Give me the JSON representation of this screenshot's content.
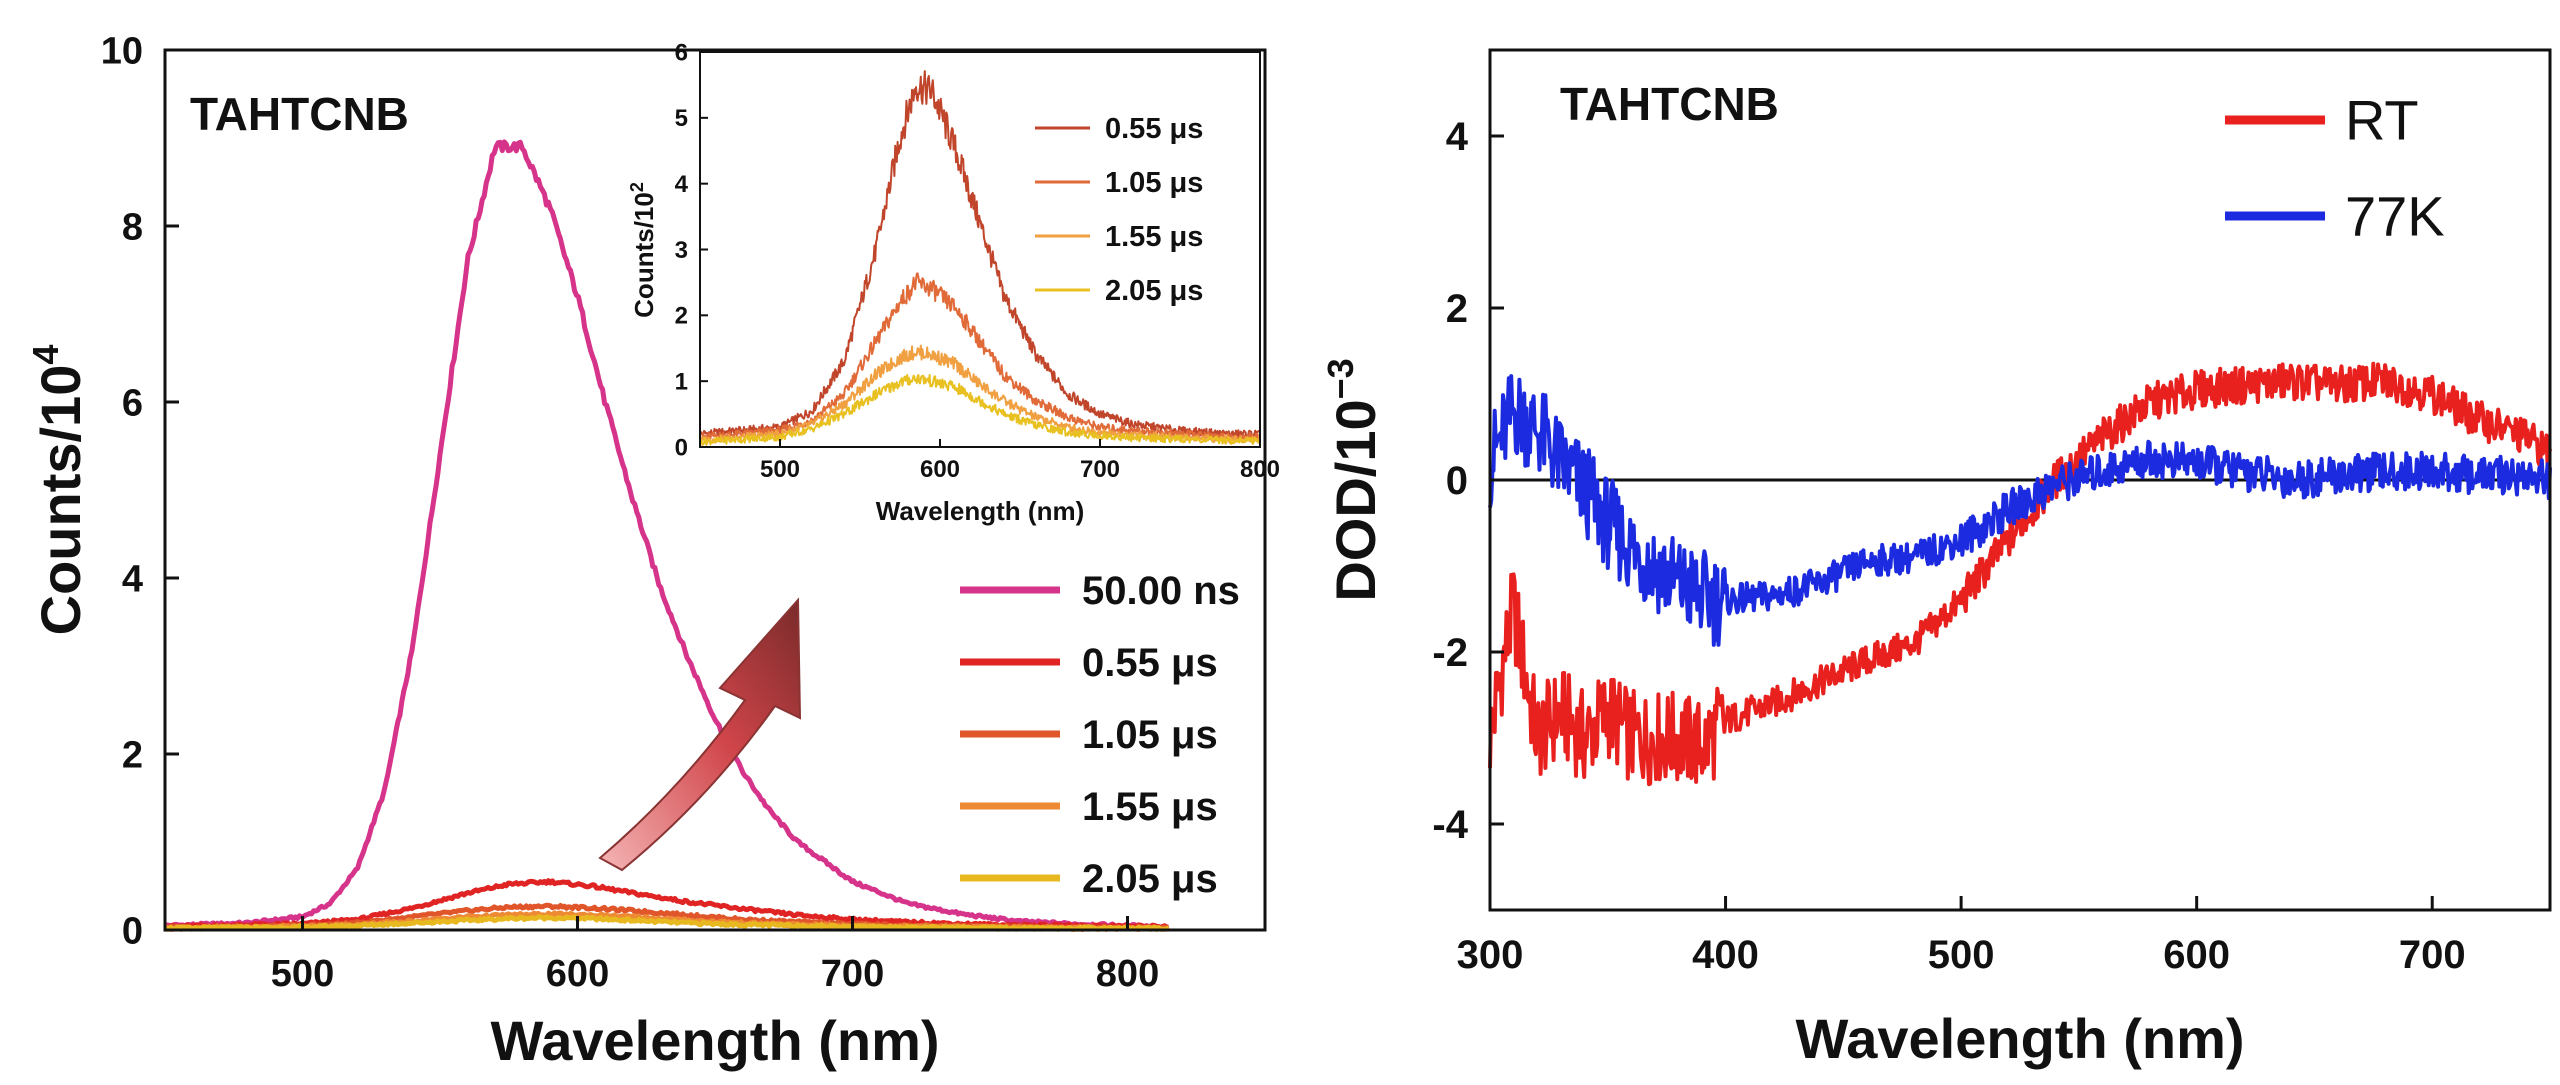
{
  "chart_data": [
    {
      "type": "line",
      "panel": "left",
      "title": "TAHTCNB",
      "xlabel": "Wavelength (nm)",
      "ylabel": "Counts/10",
      "ylabel_exponent": "4",
      "xlim": [
        450,
        850
      ],
      "ylim": [
        0,
        10
      ],
      "xticks": [
        500,
        600,
        700,
        800
      ],
      "yticks": [
        0,
        2,
        4,
        6,
        8,
        10
      ],
      "series": [
        {
          "name": "50.00 ns",
          "color": "#d6338a",
          "x": [
            450,
            480,
            500,
            510,
            520,
            530,
            540,
            550,
            560,
            570,
            580,
            590,
            600,
            610,
            620,
            630,
            640,
            650,
            660,
            670,
            680,
            700,
            720,
            740,
            760,
            780,
            800,
            815
          ],
          "values": [
            0.05,
            0.08,
            0.15,
            0.3,
            0.7,
            1.6,
            3.2,
            5.4,
            7.6,
            8.9,
            8.9,
            8.2,
            7.2,
            6.0,
            4.9,
            3.9,
            3.1,
            2.4,
            1.8,
            1.35,
            1.0,
            0.55,
            0.3,
            0.18,
            0.1,
            0.07,
            0.05,
            0.04
          ]
        },
        {
          "name": "0.55 μs",
          "color": "#e02424",
          "x": [
            450,
            500,
            520,
            540,
            560,
            575,
            590,
            605,
            620,
            640,
            660,
            680,
            700,
            720,
            750,
            780,
            815
          ],
          "values": [
            0.04,
            0.07,
            0.12,
            0.25,
            0.42,
            0.52,
            0.55,
            0.5,
            0.42,
            0.32,
            0.24,
            0.17,
            0.12,
            0.09,
            0.06,
            0.05,
            0.04
          ]
        },
        {
          "name": "1.05 μs",
          "color": "#e0562a",
          "x": [
            450,
            500,
            520,
            540,
            560,
            575,
            590,
            605,
            620,
            640,
            660,
            680,
            700,
            720,
            750,
            780,
            815
          ],
          "values": [
            0.03,
            0.05,
            0.08,
            0.15,
            0.22,
            0.26,
            0.27,
            0.25,
            0.22,
            0.17,
            0.12,
            0.09,
            0.07,
            0.05,
            0.04,
            0.03,
            0.03
          ]
        },
        {
          "name": "1.55 μs",
          "color": "#ef8a34",
          "x": [
            450,
            500,
            520,
            540,
            560,
            575,
            590,
            605,
            620,
            640,
            660,
            680,
            700,
            720,
            750,
            780,
            815
          ],
          "values": [
            0.02,
            0.04,
            0.06,
            0.1,
            0.15,
            0.17,
            0.18,
            0.17,
            0.15,
            0.11,
            0.08,
            0.06,
            0.05,
            0.04,
            0.03,
            0.02,
            0.02
          ]
        },
        {
          "name": "2.05 μs",
          "color": "#e8b820",
          "x": [
            450,
            500,
            520,
            540,
            560,
            575,
            590,
            605,
            620,
            640,
            660,
            680,
            700,
            720,
            750,
            780,
            815
          ],
          "values": [
            0.02,
            0.03,
            0.05,
            0.08,
            0.11,
            0.13,
            0.14,
            0.13,
            0.11,
            0.08,
            0.06,
            0.05,
            0.04,
            0.03,
            0.02,
            0.02,
            0.02
          ]
        }
      ],
      "legend_position": "bottom-right"
    },
    {
      "type": "line",
      "panel": "left-inset",
      "xlabel": "Wavelength (nm)",
      "ylabel": "Counts/10",
      "ylabel_exponent": "2",
      "xlim": [
        450,
        800
      ],
      "ylim": [
        0,
        6
      ],
      "xticks": [
        500,
        600,
        700,
        800
      ],
      "yticks": [
        0,
        1,
        2,
        3,
        4,
        5,
        6
      ],
      "series": [
        {
          "name": "0.55 μs",
          "color": "#c0452a",
          "x": [
            450,
            500,
            520,
            540,
            560,
            575,
            585,
            595,
            610,
            625,
            640,
            660,
            680,
            700,
            720,
            750,
            780,
            800
          ],
          "values": [
            0.2,
            0.3,
            0.55,
            1.3,
            3.0,
            4.7,
            5.5,
            5.4,
            4.5,
            3.4,
            2.3,
            1.4,
            0.8,
            0.5,
            0.35,
            0.25,
            0.2,
            0.2
          ]
        },
        {
          "name": "1.05 μs",
          "color": "#e06a38",
          "x": [
            450,
            500,
            520,
            540,
            560,
            575,
            585,
            595,
            610,
            625,
            640,
            660,
            680,
            700,
            720,
            750,
            780,
            800
          ],
          "values": [
            0.15,
            0.25,
            0.4,
            0.8,
            1.6,
            2.2,
            2.5,
            2.4,
            2.1,
            1.6,
            1.1,
            0.7,
            0.45,
            0.3,
            0.25,
            0.2,
            0.15,
            0.15
          ]
        },
        {
          "name": "1.55 μs",
          "color": "#f0a040",
          "x": [
            450,
            500,
            520,
            540,
            560,
            575,
            585,
            595,
            610,
            625,
            640,
            660,
            680,
            700,
            720,
            750,
            780,
            800
          ],
          "values": [
            0.1,
            0.2,
            0.35,
            0.65,
            1.1,
            1.35,
            1.45,
            1.4,
            1.25,
            0.95,
            0.7,
            0.45,
            0.3,
            0.22,
            0.18,
            0.15,
            0.12,
            0.12
          ]
        },
        {
          "name": "2.05 μs",
          "color": "#e8c020",
          "x": [
            450,
            500,
            520,
            540,
            560,
            575,
            585,
            595,
            610,
            625,
            640,
            660,
            680,
            700,
            720,
            750,
            780,
            800
          ],
          "values": [
            0.08,
            0.15,
            0.28,
            0.5,
            0.8,
            0.98,
            1.05,
            1.0,
            0.9,
            0.7,
            0.5,
            0.33,
            0.22,
            0.17,
            0.14,
            0.12,
            0.1,
            0.1
          ]
        }
      ],
      "legend_position": "top-right"
    },
    {
      "type": "line",
      "panel": "right",
      "title": "TAHTCNB",
      "xlabel": "Wavelength (nm)",
      "ylabel": "DOD/10",
      "ylabel_exponent": "−3",
      "xlim": [
        300,
        750
      ],
      "ylim": [
        -5,
        5
      ],
      "xticks": [
        300,
        400,
        500,
        600,
        700
      ],
      "yticks": [
        -4,
        -2,
        0,
        2,
        4
      ],
      "zero_line": true,
      "series": [
        {
          "name": "RT",
          "color": "#e8201e",
          "x": [
            300,
            305,
            310,
            320,
            330,
            340,
            350,
            360,
            370,
            380,
            390,
            400,
            420,
            440,
            460,
            480,
            500,
            520,
            540,
            560,
            580,
            600,
            620,
            640,
            660,
            680,
            700,
            720,
            740,
            750
          ],
          "values": [
            -3.0,
            -2.2,
            -1.5,
            -3.0,
            -2.7,
            -3.0,
            -2.7,
            -3.0,
            -3.0,
            -3.0,
            -3.1,
            -2.8,
            -2.6,
            -2.35,
            -2.1,
            -1.9,
            -1.4,
            -0.7,
            0.0,
            0.5,
            0.9,
            1.05,
            1.1,
            1.15,
            1.1,
            1.15,
            1.0,
            0.7,
            0.5,
            0.3
          ]
        },
        {
          "name": "77K",
          "color": "#1c2be0",
          "x": [
            300,
            305,
            310,
            320,
            330,
            340,
            350,
            360,
            370,
            380,
            390,
            400,
            420,
            440,
            460,
            480,
            500,
            520,
            540,
            560,
            580,
            600,
            620,
            640,
            660,
            680,
            700,
            720,
            740,
            750
          ],
          "values": [
            0.2,
            0.5,
            0.8,
            0.6,
            0.2,
            -0.1,
            -0.5,
            -0.8,
            -1.0,
            -1.2,
            -1.35,
            -1.4,
            -1.35,
            -1.2,
            -0.95,
            -0.9,
            -0.7,
            -0.35,
            -0.05,
            0.1,
            0.25,
            0.2,
            0.1,
            0.0,
            0.05,
            0.1,
            0.1,
            0.05,
            0.05,
            0.0
          ]
        }
      ],
      "legend_position": "top-right"
    }
  ]
}
